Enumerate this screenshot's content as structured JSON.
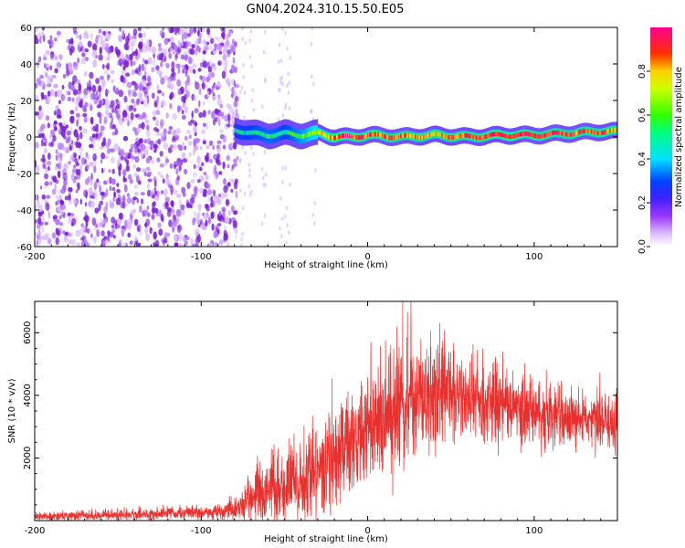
{
  "title": "GN04.2024.310.15.50.E05",
  "colors": {
    "snr_line": "#e8302e",
    "noise_spot": "#7a1fd8",
    "colormap": [
      "#ffffff",
      "#d9b3ff",
      "#8000ff",
      "#0000ff",
      "#00ffff",
      "#00ff00",
      "#ffff00",
      "#ff0000",
      "#ff0080"
    ]
  },
  "chart_data": [
    {
      "type": "heatmap",
      "xlabel": "Height of straight line (km)",
      "ylabel": "Frequency (Hz)",
      "xlim": [
        -200,
        150
      ],
      "ylim": [
        -60,
        60
      ],
      "x_ticks": [
        "-200",
        "-100",
        "0",
        "100"
      ],
      "x_tick_values": [
        -200,
        -100,
        0,
        100
      ],
      "y_ticks": [
        "-60",
        "-40",
        "-20",
        "0",
        "20",
        "40",
        "60"
      ],
      "y_tick_values": [
        -60,
        -40,
        -20,
        0,
        20,
        40,
        60
      ],
      "colorbar": {
        "label": "Normalized spectral amplitude",
        "ticks": [
          "0.0",
          "0.2",
          "0.4",
          "0.6",
          "0.8"
        ],
        "tick_values": [
          0.0,
          0.2,
          0.4,
          0.6,
          0.8
        ],
        "range": [
          0,
          1
        ]
      },
      "noise_region_x": [
        -200,
        -78
      ],
      "ridge": {
        "x": [
          -80,
          -70,
          -60,
          -50,
          -40,
          -30,
          -20,
          -10,
          0,
          20,
          40,
          60,
          80,
          100,
          120,
          140,
          150
        ],
        "freq": [
          4,
          2,
          1,
          2,
          1,
          2,
          0,
          0,
          1,
          0,
          1,
          0,
          1,
          1,
          2,
          3,
          3
        ],
        "amplitude": [
          0.45,
          0.5,
          0.55,
          0.5,
          0.6,
          0.7,
          0.85,
          0.9,
          0.9,
          0.85,
          0.8,
          0.85,
          0.95,
          0.95,
          0.9,
          0.85,
          0.8
        ]
      }
    },
    {
      "type": "line",
      "xlabel": "Height of straight line (km)",
      "ylabel": "SNR (10 * v/v)",
      "xlim": [
        -200,
        150
      ],
      "ylim": [
        0,
        7000
      ],
      "x_ticks": [
        "-200",
        "-100",
        "0",
        "100"
      ],
      "x_tick_values": [
        -200,
        -100,
        0,
        100
      ],
      "y_ticks": [
        "2000",
        "4000",
        "6000"
      ],
      "y_tick_values": [
        2000,
        4000,
        6000
      ],
      "envelope": {
        "x": [
          -200,
          -150,
          -100,
          -90,
          -80,
          -75,
          -70,
          -65,
          -60,
          -55,
          -50,
          -45,
          -40,
          -35,
          -30,
          -20,
          -10,
          0,
          10,
          20,
          30,
          40,
          50,
          60,
          70,
          80,
          90,
          100,
          110,
          120,
          130,
          140,
          150
        ],
        "mean": [
          120,
          180,
          250,
          300,
          350,
          500,
          700,
          1000,
          800,
          1100,
          900,
          1300,
          1000,
          1400,
          1500,
          1900,
          2600,
          3000,
          3300,
          3700,
          3900,
          4000,
          4100,
          3900,
          3800,
          3700,
          3500,
          3400,
          3300,
          3250,
          3200,
          3100,
          3000
        ],
        "spread": [
          150,
          200,
          250,
          300,
          400,
          700,
          900,
          1300,
          1000,
          1300,
          1200,
          1500,
          1400,
          1700,
          1800,
          2000,
          2100,
          2100,
          2000,
          2300,
          2200,
          2000,
          1900,
          1700,
          1600,
          1500,
          1300,
          1200,
          1200,
          1100,
          1100,
          1200,
          1100
        ],
        "peaks": [
          {
            "x": 21,
            "y": 7000
          },
          {
            "x": 26,
            "y": 7000
          },
          {
            "x": 2,
            "y": 5700
          },
          {
            "x": 32,
            "y": 5800
          }
        ]
      }
    }
  ]
}
